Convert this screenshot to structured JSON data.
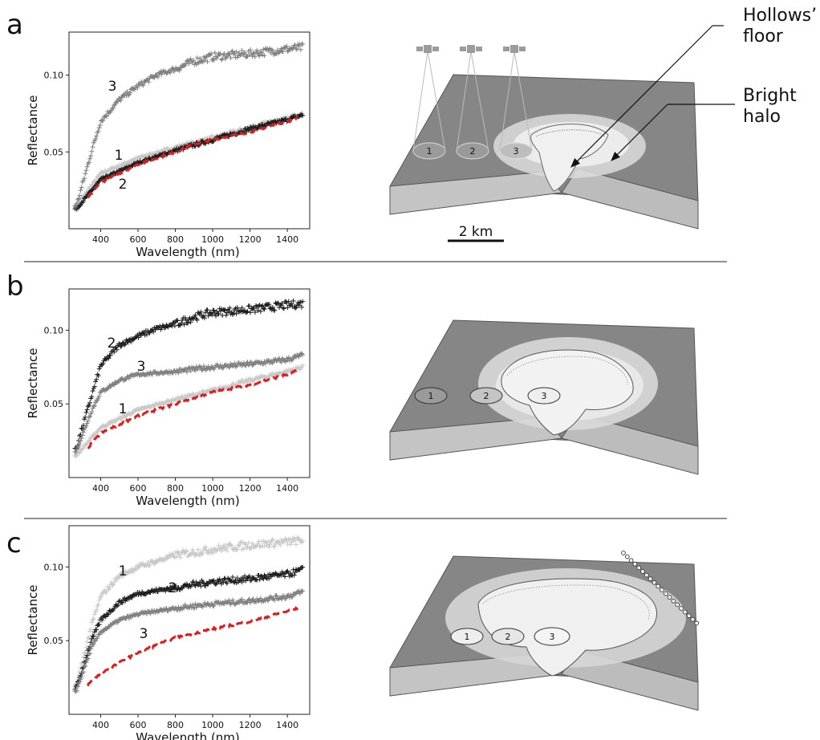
{
  "panels": [
    {
      "letter": "a",
      "series": [
        {
          "label": "1",
          "color": "#c8c8c8",
          "noise": 2.5
        },
        {
          "label": "2",
          "color": "#1a1a1a",
          "noise": 2.5
        },
        {
          "label": "3",
          "color": "#7f7f7f",
          "noise": 5
        }
      ],
      "spots": [
        "1",
        "2",
        "3"
      ],
      "annotations": {
        "hollows_floor": "Hollows’\nfloor",
        "bright_halo": "Bright\nhalo"
      },
      "scalebar": "2 km"
    },
    {
      "letter": "b",
      "series": [
        {
          "label": "1",
          "color": "#c8c8c8",
          "noise": 2.5
        },
        {
          "label": "2",
          "color": "#1a1a1a",
          "noise": 5
        },
        {
          "label": "3",
          "color": "#7f7f7f",
          "noise": 3
        }
      ],
      "spots": [
        "1",
        "2",
        "3"
      ]
    },
    {
      "letter": "c",
      "series": [
        {
          "label": "1",
          "color": "#c8c8c8",
          "noise": 5
        },
        {
          "label": "2",
          "color": "#1a1a1a",
          "noise": 4
        },
        {
          "label": "3",
          "color": "#7f7f7f",
          "noise": 3
        }
      ],
      "spots": [
        "1",
        "2",
        "3"
      ]
    }
  ],
  "axis": {
    "xlabel": "Wavelength (nm)",
    "ylabel": "Reflectance",
    "xticks": [
      400,
      600,
      800,
      1000,
      1200,
      1400
    ],
    "yticks": [
      "0.05",
      "0.10"
    ]
  },
  "chart_data": [
    {
      "type": "scatter",
      "panel": "a",
      "xlabel": "Wavelength (nm)",
      "ylabel": "Reflectance",
      "xlim": [
        230,
        1520
      ],
      "ylim": [
        0.0,
        0.128
      ],
      "series": [
        {
          "name": "1",
          "x": [
            270,
            400,
            600,
            800,
            1000,
            1200,
            1400,
            1480
          ],
          "y": [
            0.015,
            0.036,
            0.046,
            0.053,
            0.059,
            0.066,
            0.072,
            0.075
          ]
        },
        {
          "name": "2",
          "x": [
            270,
            400,
            600,
            800,
            1000,
            1200,
            1400,
            1480
          ],
          "y": [
            0.013,
            0.032,
            0.043,
            0.051,
            0.058,
            0.065,
            0.071,
            0.074
          ]
        },
        {
          "name": "3",
          "x": [
            270,
            350,
            400,
            500,
            600,
            700,
            800,
            900,
            1000,
            1200,
            1400,
            1480
          ],
          "y": [
            0.015,
            0.05,
            0.07,
            0.084,
            0.093,
            0.1,
            0.104,
            0.109,
            0.112,
            0.114,
            0.117,
            0.118
          ]
        },
        {
          "name": "",
          "line": "dashed-red",
          "x": [
            330,
            400,
            600,
            800,
            900,
            1000,
            1200,
            1400,
            1460
          ],
          "y": [
            0.02,
            0.03,
            0.042,
            0.05,
            0.055,
            0.058,
            0.063,
            0.07,
            0.073
          ]
        }
      ]
    },
    {
      "type": "scatter",
      "panel": "b",
      "xlabel": "Wavelength (nm)",
      "ylabel": "Reflectance",
      "xlim": [
        230,
        1520
      ],
      "ylim": [
        0.0,
        0.128
      ],
      "series": [
        {
          "name": "1",
          "x": [
            270,
            400,
            600,
            800,
            1000,
            1200,
            1400,
            1480
          ],
          "y": [
            0.015,
            0.034,
            0.046,
            0.053,
            0.059,
            0.066,
            0.072,
            0.075
          ]
        },
        {
          "name": "2",
          "x": [
            270,
            350,
            400,
            500,
            600,
            700,
            800,
            900,
            1000,
            1200,
            1400,
            1480
          ],
          "y": [
            0.02,
            0.055,
            0.076,
            0.09,
            0.096,
            0.101,
            0.104,
            0.109,
            0.112,
            0.114,
            0.117,
            0.118
          ]
        },
        {
          "name": "3",
          "x": [
            270,
            350,
            400,
            500,
            600,
            700,
            800,
            1000,
            1200,
            1400,
            1480
          ],
          "y": [
            0.018,
            0.045,
            0.058,
            0.066,
            0.07,
            0.071,
            0.072,
            0.075,
            0.077,
            0.08,
            0.083
          ]
        },
        {
          "name": "",
          "line": "dashed-red",
          "x": [
            330,
            400,
            600,
            800,
            1000,
            1200,
            1400,
            1460
          ],
          "y": [
            0.02,
            0.03,
            0.042,
            0.05,
            0.058,
            0.063,
            0.07,
            0.073
          ]
        }
      ]
    },
    {
      "type": "scatter",
      "panel": "c",
      "xlabel": "Wavelength (nm)",
      "ylabel": "Reflectance",
      "xlim": [
        230,
        1520
      ],
      "ylim": [
        0.0,
        0.128
      ],
      "series": [
        {
          "name": "1",
          "x": [
            270,
            350,
            400,
            500,
            600,
            700,
            800,
            1000,
            1200,
            1400,
            1480
          ],
          "y": [
            0.02,
            0.06,
            0.08,
            0.094,
            0.1,
            0.104,
            0.108,
            0.112,
            0.115,
            0.117,
            0.118
          ]
        },
        {
          "name": "2",
          "x": [
            270,
            350,
            400,
            500,
            600,
            700,
            800,
            1000,
            1200,
            1400,
            1480
          ],
          "y": [
            0.018,
            0.05,
            0.064,
            0.076,
            0.082,
            0.084,
            0.086,
            0.09,
            0.092,
            0.095,
            0.098
          ]
        },
        {
          "name": "3",
          "x": [
            270,
            350,
            400,
            500,
            600,
            700,
            800,
            1000,
            1200,
            1400,
            1480
          ],
          "y": [
            0.016,
            0.045,
            0.056,
            0.064,
            0.068,
            0.07,
            0.072,
            0.075,
            0.077,
            0.08,
            0.083
          ]
        },
        {
          "name": "",
          "line": "dashed-red",
          "x": [
            330,
            400,
            600,
            800,
            1000,
            1200,
            1400,
            1460
          ],
          "y": [
            0.02,
            0.028,
            0.042,
            0.052,
            0.058,
            0.063,
            0.07,
            0.072
          ]
        }
      ]
    }
  ]
}
